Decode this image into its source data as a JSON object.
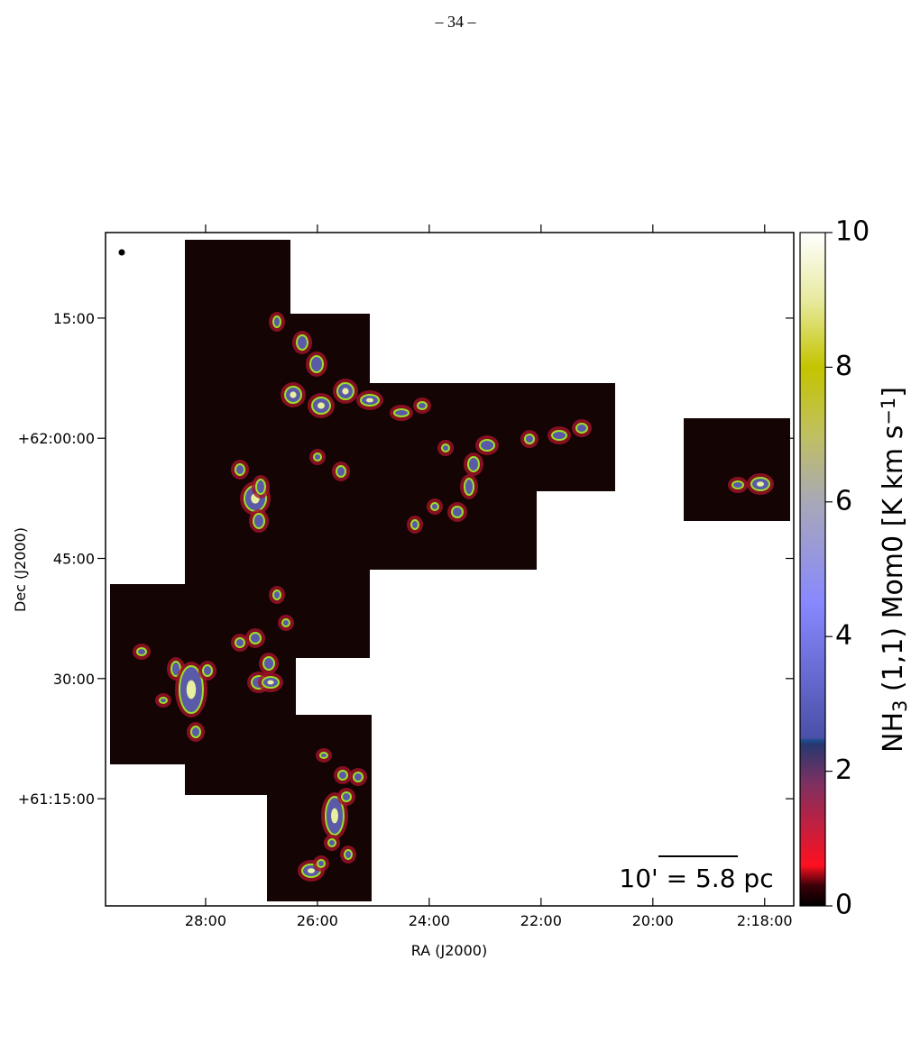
{
  "header": {
    "page_number": "– 34 –"
  },
  "chart_data": {
    "type": "image",
    "xlabel": "RA (J2000)",
    "ylabel": "Dec (J2000)",
    "xlim": [
      29.79,
      17.48
    ],
    "xticks": [
      {
        "value": 28,
        "label": "28:00"
      },
      {
        "value": 26,
        "label": "26:00"
      },
      {
        "value": 24,
        "label": "24:00"
      },
      {
        "value": 22,
        "label": "22:00"
      },
      {
        "value": 20,
        "label": "20:00"
      },
      {
        "value": 18,
        "label": "2:18:00"
      }
    ],
    "ylim": [
      61.027,
      62.428
    ],
    "yticks": [
      {
        "value": 62.25,
        "label": "15:00"
      },
      {
        "value": 62.0,
        "label": "+62:00:00"
      },
      {
        "value": 61.75,
        "label": "45:00"
      },
      {
        "value": 61.5,
        "label": "30:00"
      },
      {
        "value": 61.25,
        "label": "+61:15:00"
      }
    ],
    "colorbar": {
      "clim": [
        0,
        10
      ],
      "ticks": [
        0,
        2,
        4,
        6,
        8,
        10
      ],
      "label": [
        {
          "text": "NH"
        },
        {
          "text": "3",
          "sub": true
        },
        {
          "text": " (1,1) Mom0 [K km s"
        },
        {
          "text": "−1",
          "sup": true
        },
        {
          "text": "]"
        }
      ]
    },
    "scalebar_label": "10' = 5.8 pc"
  }
}
